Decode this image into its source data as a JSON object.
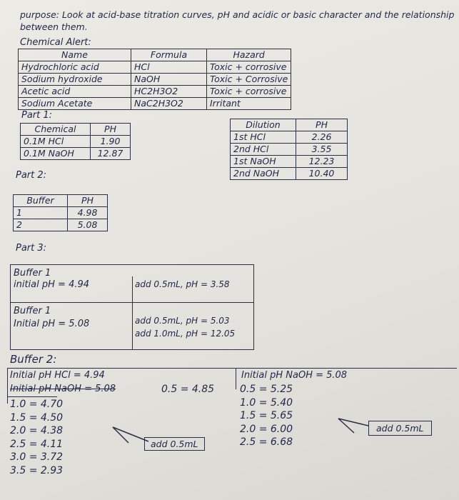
{
  "purpose": "purpose: Look at acid-base titration curves, pH and acidic or basic character and the relationship between them.",
  "chemical_alert": {
    "title": "Chemical Alert:",
    "headers": [
      "Name",
      "Formula",
      "Hazard"
    ],
    "rows": [
      [
        "Hydrochloric acid",
        "HCl",
        "Toxic + corrosive"
      ],
      [
        "Sodium hydroxide",
        "NaOH",
        "Toxic + Corrosive"
      ],
      [
        "Acetic acid",
        "HC2H3O2",
        "Toxic + corrosive"
      ],
      [
        "Sodium Acetate",
        "NaC2H3O2",
        "Irritant"
      ]
    ]
  },
  "part1": {
    "title": "Part 1:",
    "headers": [
      "Chemical",
      "PH"
    ],
    "rows": [
      [
        "0.1M HCl",
        "1.90"
      ],
      [
        "0.1M NaOH",
        "12.87"
      ]
    ]
  },
  "dilution": {
    "headers": [
      "Dilution",
      "PH"
    ],
    "rows": [
      [
        "1st HCl",
        "2.26"
      ],
      [
        "2nd HCl",
        "3.55"
      ],
      [
        "1st NaOH",
        "12.23"
      ],
      [
        "2nd NaOH",
        "10.40"
      ]
    ]
  },
  "part2": {
    "title": "Part 2:",
    "headers": [
      "Buffer",
      "PH"
    ],
    "rows": [
      [
        "1",
        "4.98"
      ],
      [
        "2",
        "5.08"
      ]
    ]
  },
  "part3": {
    "title": "Part 3:",
    "rows": [
      {
        "label": "Buffer 1",
        "initial": "initial pH = 4.94",
        "additions": [
          "add 0.5mL, pH = 3.58"
        ]
      },
      {
        "label": "Buffer 1",
        "initial": "Initial pH = 5.08",
        "additions": [
          "add 0.5mL, pH = 5.03",
          "add 1.0mL, pH = 12.05"
        ]
      }
    ]
  },
  "buffer2": {
    "title": "Buffer 2:",
    "hcl": {
      "initial": "Initial pH HCl = 4.94",
      "struck": "Initial pH NaOH = 5.08",
      "readings": [
        "0.5 = 4.85",
        "1.0 = 4.70",
        "1.5 = 4.50",
        "2.0 = 4.38",
        "2.5 = 4.11",
        "3.0 = 3.72",
        "3.5 = 2.93"
      ],
      "note": "add 0.5mL"
    },
    "naoh": {
      "initial": "Initial pH NaOH = 5.08",
      "readings": [
        "0.5 = 5.25",
        "1.0 = 5.40",
        "1.5 = 5.65",
        "2.0 = 6.00",
        "2.5 = 6.68"
      ],
      "note": "add 0.5mL"
    }
  }
}
